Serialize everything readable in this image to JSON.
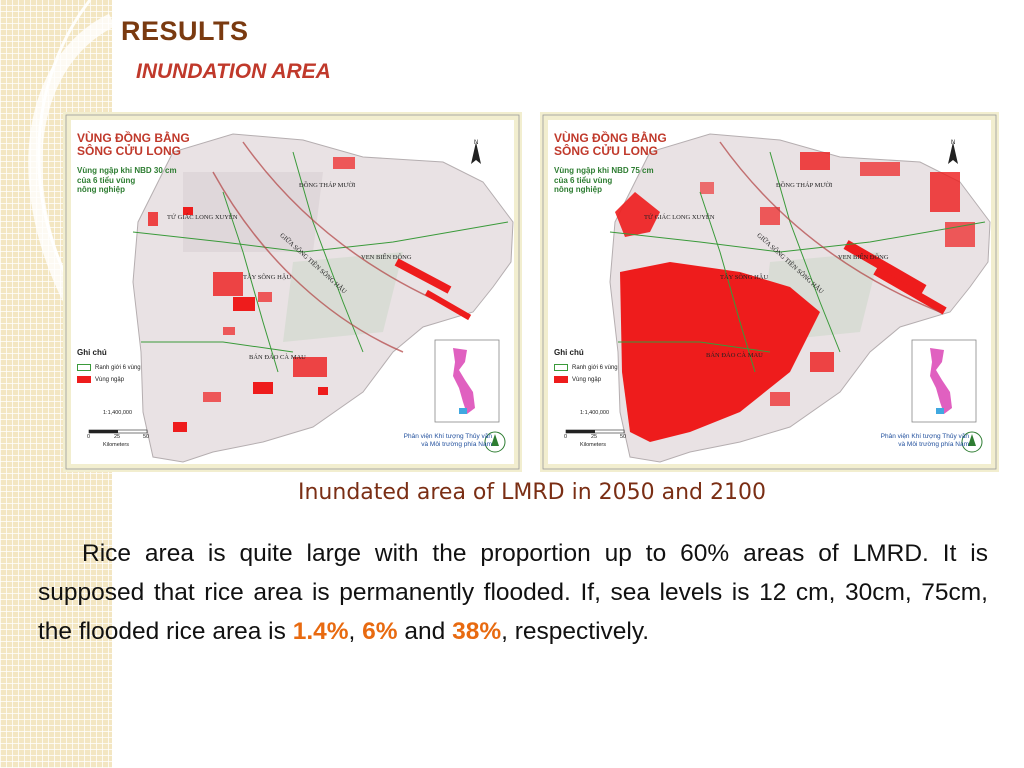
{
  "slide": {
    "title": "RESULTS",
    "subtitle": "INUNDATION AREA",
    "caption": "Inundated area of LMRD in 2050 and 2100",
    "paragraph": {
      "part1": "Rice area is quite large with the proportion up to 60% areas of LMRD. It is supposed that rice area is permanently flooded. If, sea levels is 12 cm, 30cm, 75cm, the flooded rice area is ",
      "value1": "1.4%",
      "sep1": ", ",
      "value2": "6%",
      "sep2": " and ",
      "value3": "38%",
      "part2": ", respectively."
    },
    "highlight_color": "#e86a10"
  },
  "maps": [
    {
      "title_line1": "VÙNG ĐỒNG BẰNG",
      "title_line2": "SÔNG CỬU LONG",
      "subtitle_line1": "Vùng ngập khi NBD 30 cm",
      "subtitle_line2": "của 6 tiểu vùng",
      "subtitle_line3": "nông nghiệp",
      "flood_level": "moderate"
    },
    {
      "title_line1": "VÙNG ĐỒNG BẰNG",
      "title_line2": "SÔNG CỬU LONG",
      "subtitle_line1": "Vùng ngập khi NBD 75 cm",
      "subtitle_line2": "của 6 tiểu vùng",
      "subtitle_line3": "nông nghiệp",
      "flood_level": "severe"
    }
  ],
  "map_common": {
    "regions": {
      "dong_thap_muoi": "ĐỒNG THÁP MƯỜI",
      "tu_giac_long_xuyen": "TỨ GIÁC LONG XUYÊN",
      "giua_song_tien_song_hau": "GIỮA SÔNG TIỀN SÔNG HẬU",
      "ven_bien_dong": "VEN BIỂN ĐÔNG",
      "tay_song_hau": "TÂY SÔNG HẬU",
      "ban_dao_ca_mau": "BÁN ĐẢO CÀ MAU"
    },
    "legend_title": "Ghi chú",
    "legend_boundary": "Ranh giới 6 vùng",
    "legend_flood": "Vùng ngập",
    "scale": "1:1,400,000",
    "scale_ticks": [
      "0",
      "25",
      "50"
    ],
    "scale_unit": "Kilometers",
    "institute_line1": "Phân viện Khí tượng Thủy văn",
    "institute_line2": "và Môi trường phía Nam",
    "north": "N",
    "flood_color": "#ee1c1c",
    "boundary_color": "#3a9a3a"
  }
}
